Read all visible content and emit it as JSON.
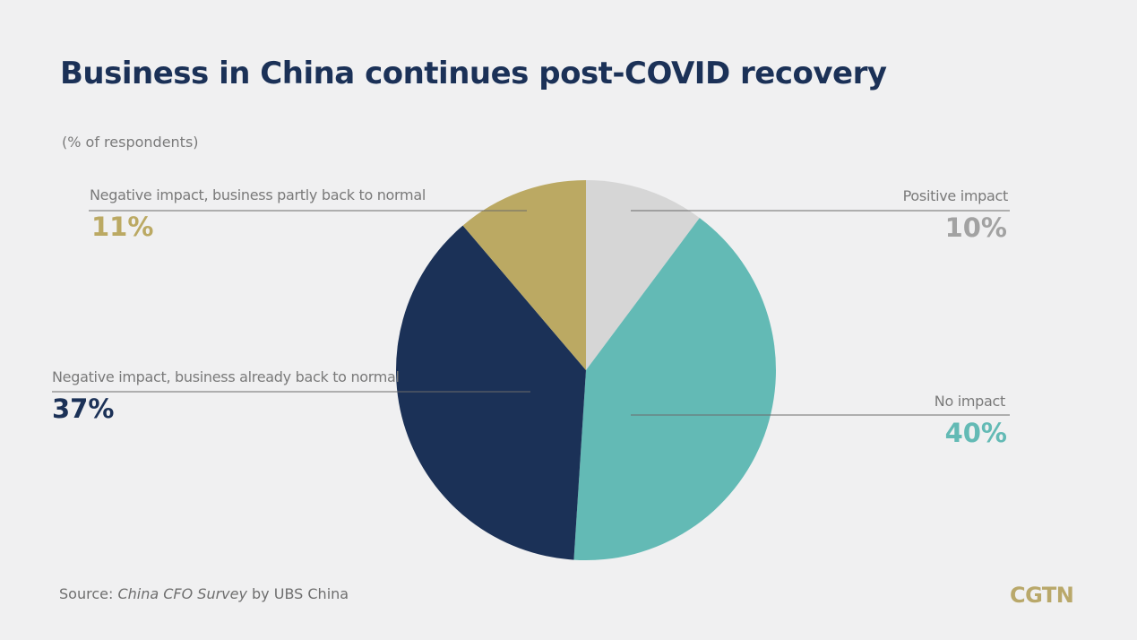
{
  "header": {
    "title": "Business in China continues post-COVID recovery",
    "subtitle": "(% of respondents)"
  },
  "source": {
    "prefix": "Source: ",
    "publication": "China CFO Survey",
    "suffix": " by UBS China"
  },
  "logo": {
    "text": "CGTN",
    "color": "#b9a86a"
  },
  "chart_data": {
    "type": "pie",
    "title": "Business in China continues post-COVID recovery",
    "subtitle": "(% of respondents)",
    "start": "12 o'clock",
    "direction": "clockwise",
    "slices": [
      {
        "label": "Positive impact",
        "value": 10,
        "value_label": "10%",
        "color": "#d6d6d6",
        "label_color": "#a2a2a2"
      },
      {
        "label": "No impact",
        "value": 40,
        "value_label": "40%",
        "color": "#63bab5",
        "label_color": "#63bab5"
      },
      {
        "label": "Negative impact, business already back to normal",
        "value": 37,
        "value_label": "37%",
        "color": "#1b3157",
        "label_color": "#1b3157"
      },
      {
        "label": "Negative impact, business partly back to normal",
        "value": 11,
        "value_label": "11%",
        "color": "#bba963",
        "label_color": "#bba963"
      }
    ]
  }
}
